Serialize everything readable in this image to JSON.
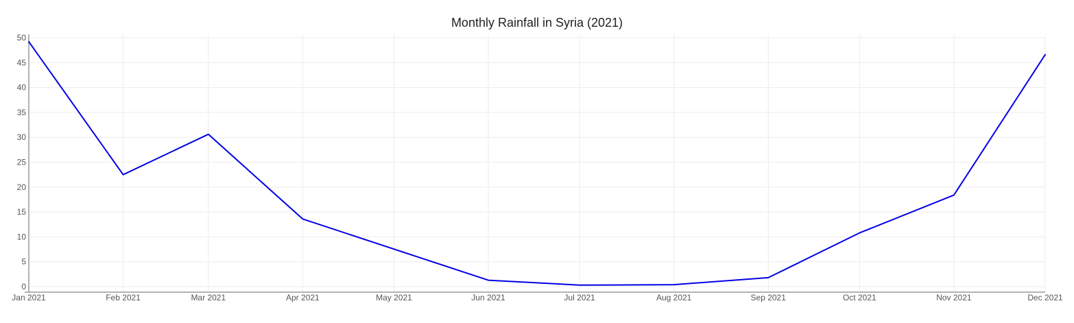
{
  "chart_data": {
    "type": "line",
    "title": "Monthly Rainfall in Syria (2021)",
    "xlabel": "",
    "ylabel": "",
    "categories": [
      "Jan 2021",
      "Feb 2021",
      "Mar 2021",
      "Apr 2021",
      "May 2021",
      "Jun 2021",
      "Jul 2021",
      "Aug 2021",
      "Sep 2021",
      "Oct 2021",
      "Nov 2021",
      "Dec 2021"
    ],
    "x": [
      "2021-01-01",
      "2021-02-01",
      "2021-03-01",
      "2021-04-01",
      "2021-05-01",
      "2021-06-01",
      "2021-07-01",
      "2021-08-01",
      "2021-09-01",
      "2021-10-01",
      "2021-11-01",
      "2021-12-01"
    ],
    "points": [
      {
        "date": "2021-01-01",
        "value": 49.2
      },
      {
        "date": "2021-02-01",
        "value": 22.5
      },
      {
        "date": "2021-03-01",
        "value": 30.6
      },
      {
        "date": "2021-04-01",
        "value": 13.6
      },
      {
        "date": "2021-06-01",
        "value": 1.3
      },
      {
        "date": "2021-07-01",
        "value": 0.3
      },
      {
        "date": "2021-08-01",
        "value": 0.4
      },
      {
        "date": "2021-09-01",
        "value": 1.8
      },
      {
        "date": "2021-10-01",
        "value": 10.8
      },
      {
        "date": "2021-11-01",
        "value": 18.4
      },
      {
        "date": "2021-12-01",
        "value": 46.6
      }
    ],
    "series": [
      {
        "color": "#0000e6"
      }
    ],
    "ylim": [
      0,
      50
    ],
    "yticks": [
      0,
      5,
      10,
      15,
      20,
      25,
      30,
      35,
      40,
      45,
      50
    ],
    "grid": true,
    "legend": "none"
  }
}
